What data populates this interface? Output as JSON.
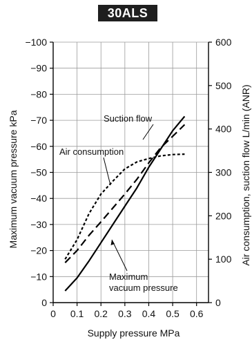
{
  "chart_data": {
    "type": "line",
    "title": "30ALS",
    "xlabel": "Supply pressure MPa",
    "ylabel_left": "Maximum vacuum pressure  kPa",
    "ylabel_right": "Air consumption, suction flow L/min (ANR)",
    "xlim": [
      0,
      0.65
    ],
    "x_ticks": [
      0,
      0.1,
      0.2,
      0.3,
      0.4,
      0.5,
      0.6
    ],
    "x_tick_labels": [
      "0",
      "0.1",
      "0.2",
      "0.3",
      "0.4",
      "0.5",
      "0.6"
    ],
    "ylim_left": [
      0,
      -100
    ],
    "y_left_ticks": [
      0,
      -10,
      -20,
      -30,
      -40,
      -50,
      -60,
      -70,
      -80,
      -90,
      -100
    ],
    "y_left_tick_labels": [
      "0",
      "−10",
      "−20",
      "−30",
      "−40",
      "−50",
      "−60",
      "−70",
      "−80",
      "−90",
      "−100"
    ],
    "ylim_right": [
      0,
      600
    ],
    "y_right_ticks": [
      0,
      100,
      200,
      300,
      400,
      500,
      600
    ],
    "y_right_tick_labels": [
      "0",
      "100",
      "200",
      "300",
      "400",
      "500",
      "600"
    ],
    "grid": true,
    "series": [
      {
        "name": "Maximum vacuum pressure",
        "axis": "left",
        "style": "solid",
        "x": [
          0.05,
          0.1,
          0.15,
          0.2,
          0.25,
          0.3,
          0.35,
          0.4,
          0.45,
          0.5,
          0.55
        ],
        "y": [
          -4.5,
          -9.5,
          -16,
          -23,
          -30,
          -37,
          -44,
          -52,
          -59,
          -66,
          -71.5
        ]
      },
      {
        "name": "Air consumption",
        "axis": "right",
        "style": "dashed",
        "x": [
          0.05,
          0.1,
          0.15,
          0.2,
          0.25,
          0.3,
          0.35,
          0.4,
          0.45,
          0.5,
          0.55
        ],
        "y": [
          92,
          120,
          155,
          186,
          218,
          250,
          284,
          322,
          357,
          383,
          410
        ]
      },
      {
        "name": "Suction flow",
        "axis": "right",
        "style": "dotted",
        "x": [
          0.05,
          0.1,
          0.15,
          0.2,
          0.25,
          0.3,
          0.35,
          0.4,
          0.45,
          0.5,
          0.55
        ],
        "y": [
          100,
          145,
          205,
          250,
          280,
          308,
          324,
          332,
          338,
          341,
          342
        ]
      }
    ],
    "annotations": [
      {
        "text": "Suction flow",
        "series": "Suction flow"
      },
      {
        "text": "Air consumption",
        "series": "Air consumption"
      },
      {
        "text": "Maximum",
        "series": "Maximum vacuum pressure"
      },
      {
        "text": "vacuum pressure",
        "series": "Maximum vacuum pressure"
      }
    ]
  }
}
